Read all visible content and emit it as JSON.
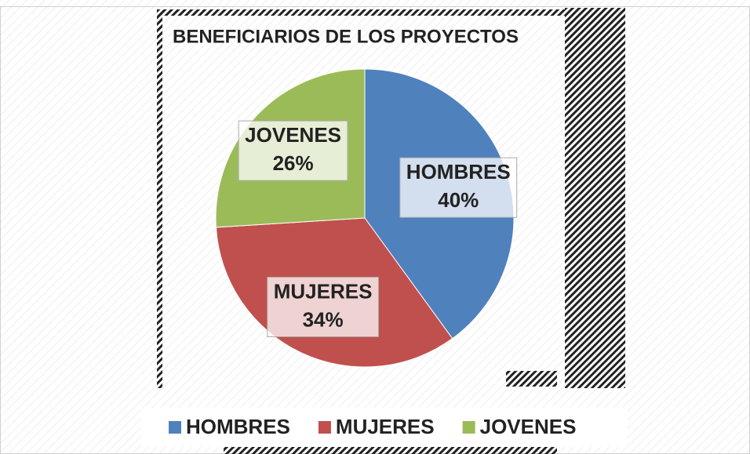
{
  "chart_data": {
    "type": "pie",
    "title": "BENEFICIARIOS DE LOS PROYECTOS",
    "categories": [
      "HOMBRES",
      "MUJERES",
      "JOVENES"
    ],
    "values": [
      40,
      34,
      26
    ],
    "value_labels": [
      "40%",
      "34%",
      "26%"
    ],
    "colors": [
      "#4f81bd",
      "#c0504d",
      "#9bbb59"
    ],
    "legend": "bottom"
  }
}
